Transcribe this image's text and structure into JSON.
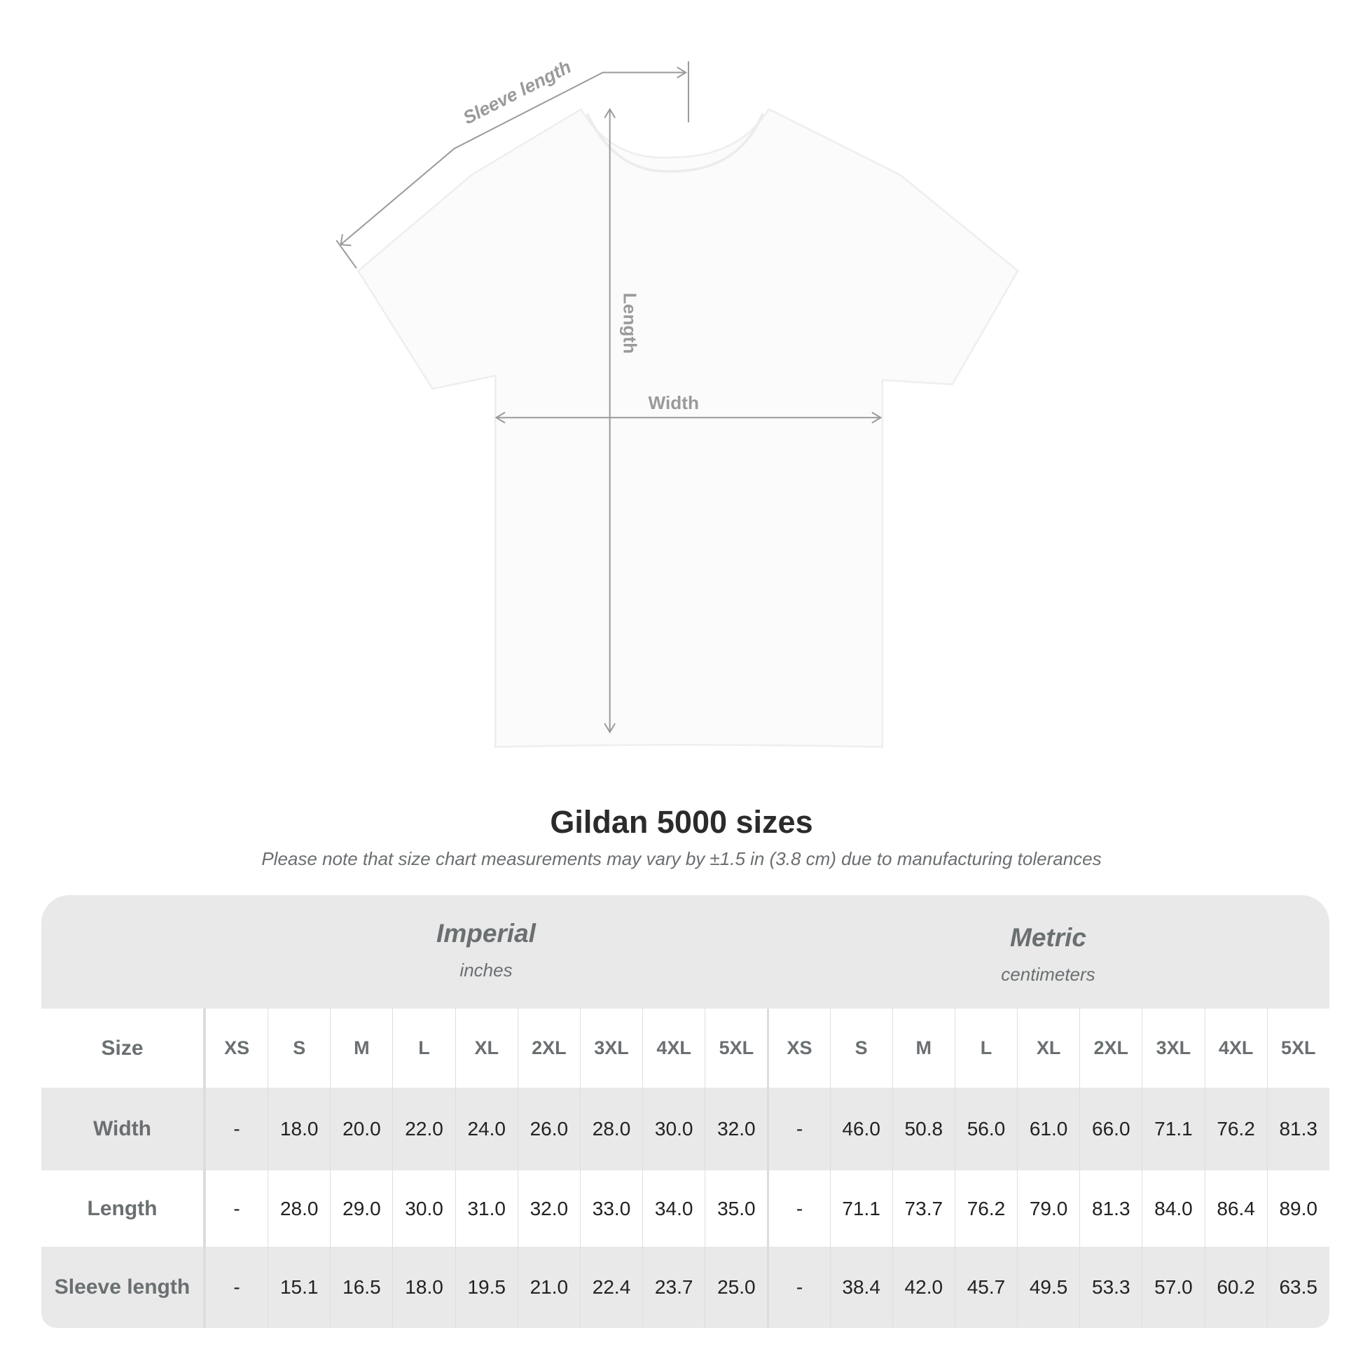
{
  "diagram": {
    "labels": {
      "sleeve": "Sleeve length",
      "length": "Length",
      "width": "Width"
    },
    "colors": {
      "annotation": "#9a9a9a",
      "shirt": "#fbfbfb"
    }
  },
  "title": "Gildan 5000 sizes",
  "note": "Please note that size chart measurements may vary by ±1.5 in (3.8 cm) due to manufacturing tolerances",
  "table": {
    "imperial": {
      "name": "Imperial",
      "unit": "inches"
    },
    "metric": {
      "name": "Metric",
      "unit": "centimeters"
    },
    "size_label": "Size",
    "sizes": [
      "XS",
      "S",
      "M",
      "L",
      "XL",
      "2XL",
      "3XL",
      "4XL",
      "5XL"
    ],
    "rows": [
      {
        "label": "Width",
        "imperial": [
          "-",
          "18.0",
          "20.0",
          "22.0",
          "24.0",
          "26.0",
          "28.0",
          "30.0",
          "32.0"
        ],
        "metric": [
          "-",
          "46.0",
          "50.8",
          "56.0",
          "61.0",
          "66.0",
          "71.1",
          "76.2",
          "81.3"
        ]
      },
      {
        "label": "Length",
        "imperial": [
          "-",
          "28.0",
          "29.0",
          "30.0",
          "31.0",
          "32.0",
          "33.0",
          "34.0",
          "35.0"
        ],
        "metric": [
          "-",
          "71.1",
          "73.7",
          "76.2",
          "79.0",
          "81.3",
          "84.0",
          "86.4",
          "89.0"
        ]
      },
      {
        "label": "Sleeve length",
        "imperial": [
          "-",
          "15.1",
          "16.5",
          "18.0",
          "19.5",
          "21.0",
          "22.4",
          "23.7",
          "25.0"
        ],
        "metric": [
          "-",
          "38.4",
          "42.0",
          "45.7",
          "49.5",
          "53.3",
          "57.0",
          "60.2",
          "63.5"
        ]
      }
    ]
  }
}
